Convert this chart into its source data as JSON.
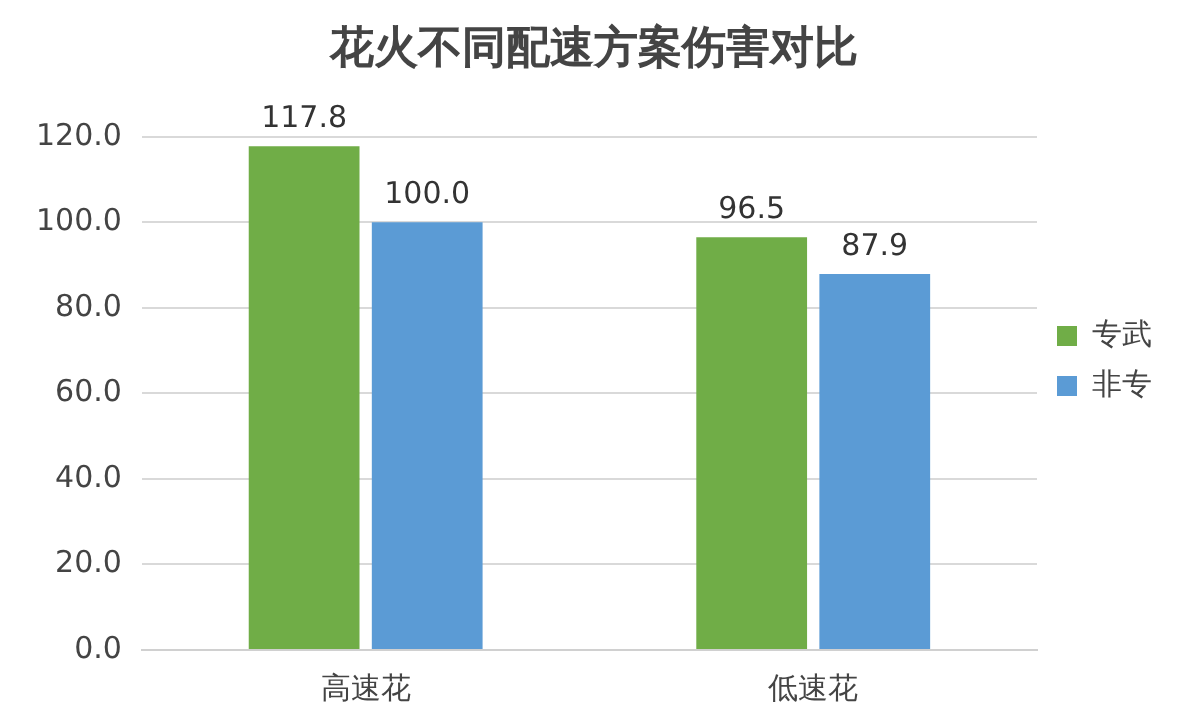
{
  "chart_data": {
    "type": "bar",
    "title": "花火不同配速方案伤害对比",
    "categories": [
      "高速花",
      "低速花"
    ],
    "series": [
      {
        "name": "专武",
        "color": "#70ad47",
        "values": [
          117.8,
          96.5
        ],
        "value_labels": [
          "117.8",
          "96.5"
        ]
      },
      {
        "name": "非专",
        "color": "#5b9bd5",
        "values": [
          100,
          87.9
        ],
        "value_labels": [
          "100.0",
          "87.9"
        ]
      }
    ],
    "ylim": [
      0,
      120
    ],
    "yticks": [
      {
        "value": 0,
        "label": "0.0"
      },
      {
        "value": 20,
        "label": "20.0"
      },
      {
        "value": 40,
        "label": "40.0"
      },
      {
        "value": 60,
        "label": "60.0"
      },
      {
        "value": 80,
        "label": "80.0"
      },
      {
        "value": 100,
        "label": "100.0"
      },
      {
        "value": 120,
        "label": "120.0"
      }
    ],
    "grid": "y",
    "legend": "right"
  }
}
